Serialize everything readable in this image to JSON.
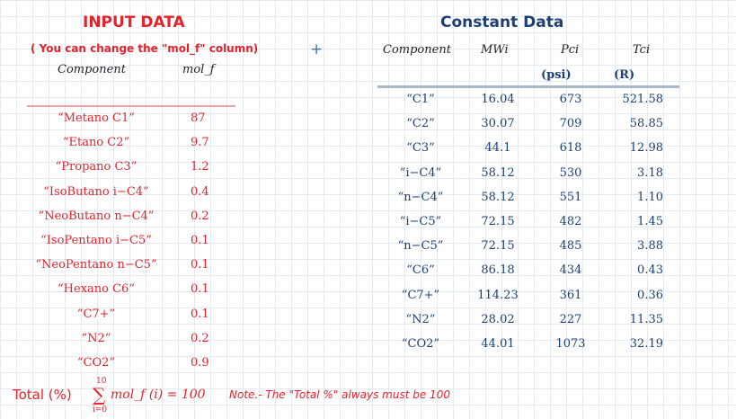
{
  "input": {
    "title": "INPUT DATA",
    "hint": "( You can change the \"mol_f\" column)",
    "col_component": "Component",
    "col_molf": "mol_f",
    "rows": [
      {
        "component": "“Metano C1”",
        "molf": "87"
      },
      {
        "component": "“Etano C2”",
        "molf": "9.7"
      },
      {
        "component": "“Propano C3”",
        "molf": "1.2"
      },
      {
        "component": "“IsoButano i−C4”",
        "molf": "0.4"
      },
      {
        "component": "“NeoButano n−C4”",
        "molf": "0.2"
      },
      {
        "component": "“IsoPentano i−C5”",
        "molf": "0.1"
      },
      {
        "component": "“NeoPentano n−C5”",
        "molf": "0.1"
      },
      {
        "component": "“Hexano C6”",
        "molf": "0.1"
      },
      {
        "component": "“C7+”",
        "molf": "0.1"
      },
      {
        "component": "“N2”",
        "molf": "0.2"
      },
      {
        "component": "“CO2”",
        "molf": "0.9"
      }
    ]
  },
  "constant": {
    "title": "Constant Data",
    "col_component": "Component",
    "col_mw": "MWi",
    "col_pc": "Pci",
    "col_tc": "Tci",
    "unit_pc": "(psi)",
    "unit_tc": "(R)",
    "rows": [
      {
        "component": "“C1”",
        "mw": "16.04",
        "pc": "673",
        "tc": "521.58"
      },
      {
        "component": "“C2”",
        "mw": "30.07",
        "pc": "709",
        "tc": "58.85"
      },
      {
        "component": "“C3”",
        "mw": "44.1",
        "pc": "618",
        "tc": "12.98"
      },
      {
        "component": "“i−C4”",
        "mw": "58.12",
        "pc": "530",
        "tc": "3.18"
      },
      {
        "component": "“n−C4”",
        "mw": "58.12",
        "pc": "551",
        "tc": "1.10"
      },
      {
        "component": "“i−C5”",
        "mw": "72.15",
        "pc": "482",
        "tc": "1.45"
      },
      {
        "component": "“n−C5”",
        "mw": "72.15",
        "pc": "485",
        "tc": "3.88"
      },
      {
        "component": "“C6”",
        "mw": "86.18",
        "pc": "434",
        "tc": "0.43"
      },
      {
        "component": "“C7+”",
        "mw": "114.23",
        "pc": "361",
        "tc": "0.36"
      },
      {
        "component": "“N2”",
        "mw": "28.02",
        "pc": "227",
        "tc": "11.35"
      },
      {
        "component": "“CO2”",
        "mw": "44.01",
        "pc": "1073",
        "tc": "32.19"
      }
    ]
  },
  "total": {
    "label": "Total (%)",
    "sum_upper": "10",
    "sum_lower": "i=0",
    "sigma": "∑",
    "formula": "mol_f (i) = 100",
    "note": "Note.- The \"Total %\" always must be 100"
  },
  "cursor": {
    "icon": "crosshair-plus-icon",
    "glyph": "+"
  },
  "colors": {
    "input_accent": "#e5222a",
    "constant_accent": "#1e3f73"
  }
}
